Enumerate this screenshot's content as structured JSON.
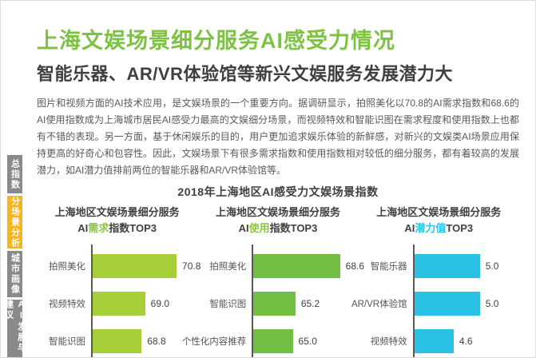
{
  "page": {
    "title": "上海文娱场景细分服务AI感受力情况",
    "subtitle": "智能乐器、AR/VR体验馆等新兴文娱服务发展潜力大",
    "body_text": "图片和视频方面的AI技术应用，是文娱场景的一个重要方向。据调研显示，拍照美化以70.8的AI需求指数和68.6的AI使用指数成为上海城市居民AI感受力最高的文娱细分场景，而视频特效和智能识图在需求程度和使用指数上也都有不错的表现。另一方面，基于休闲娱乐的目的，用户更加追求娱乐体验的新鲜感，对新兴的文娱类AI场景应用保持更高的好奇心和包容性。因此，文娱场景下有很多需求指数和使用指数相对较低的细分服务，都有着较高的发展潜力，如AI潜力值排前两位的智能乐器和AR/VR体验馆等。",
    "section_title": "2018年上海地区AI感受力文娱场景指数"
  },
  "sidebar": {
    "tabs": [
      {
        "label": "总指数",
        "active": false
      },
      {
        "label": "分场景分析",
        "active": true
      },
      {
        "label": "城市画像",
        "active": false
      },
      {
        "label": "AI发展与建议",
        "active": false
      }
    ],
    "active_color": "#f9b41b",
    "inactive_color": "#8a8a8a"
  },
  "colors": {
    "title_green": "#7dc242",
    "demand_bar": "#a6ce39",
    "usage_bar": "#72bf44",
    "potential_bar": "#29c2e5",
    "heading_text": "#404040",
    "body_text": "#595959"
  },
  "chart_data": [
    {
      "type": "bar",
      "orientation": "horizontal",
      "header_line1": "上海地区文娱场景细分服务",
      "header_prefix": "AI",
      "header_highlight": "需求",
      "header_suffix": "指数TOP3",
      "highlight_color": "#8dc63f",
      "categories": [
        "拍照美化",
        "视频特效",
        "智能识图"
      ],
      "values": [
        70.8,
        69.0,
        68.8
      ],
      "value_labels": [
        "70.8",
        "69.0",
        "68.8"
      ],
      "axis_min": 66,
      "axis_max": 72,
      "bar_color": "#a6ce39",
      "grid": false,
      "legend": "none"
    },
    {
      "type": "bar",
      "orientation": "horizontal",
      "header_line1": "上海地区文娱场景细分服务",
      "header_prefix": "AI",
      "header_highlight": "使用",
      "header_suffix": "指数TOP3",
      "highlight_color": "#8dc63f",
      "categories": [
        "拍照美化",
        "智能识图",
        "个性化内容推荐"
      ],
      "values": [
        68.6,
        65.2,
        65.0
      ],
      "value_labels": [
        "68.6",
        "65.2",
        "65.0"
      ],
      "axis_min": 62,
      "axis_max": 70,
      "bar_color": "#72bf44",
      "grid": false,
      "legend": "none"
    },
    {
      "type": "bar",
      "orientation": "horizontal",
      "header_line1": "上海地区文娱场景细分服务",
      "header_prefix": "AI",
      "header_highlight": "潜力值",
      "header_suffix": "TOP3",
      "highlight_color": "#29c2e5",
      "categories": [
        "智能乐器",
        "AR/VR体验馆",
        "视频特效"
      ],
      "values": [
        5.0,
        5.0,
        4.6
      ],
      "value_labels": [
        "5.0",
        "5.0",
        "4.6"
      ],
      "axis_min": 4.0,
      "axis_max": 5.6,
      "bar_color": "#29c2e5",
      "grid": false,
      "legend": "none"
    }
  ]
}
